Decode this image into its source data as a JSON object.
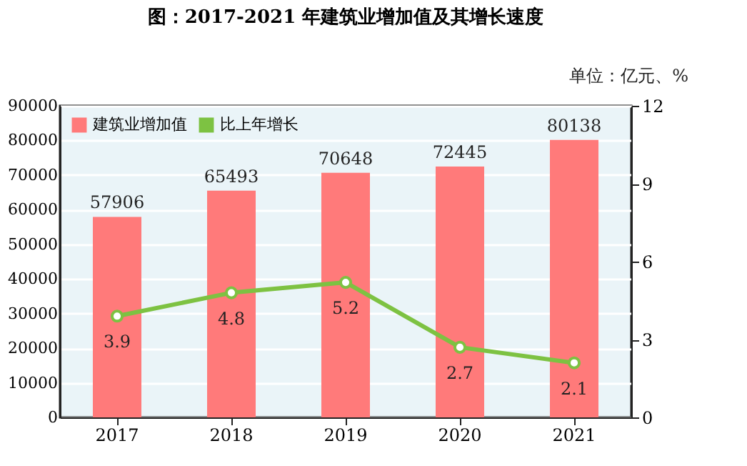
{
  "chart_data": {
    "type": "bar",
    "title": "图：2017-2021 年建筑业增加值及其增长速度",
    "annotations": [
      "单位：亿元、%"
    ],
    "categories": [
      "2017",
      "2018",
      "2019",
      "2020",
      "2021"
    ],
    "series": [
      {
        "name": "建筑业增加值",
        "color": "#ff7a7a",
        "values": [
          57906,
          65493,
          70648,
          72445,
          80138
        ]
      },
      {
        "name": "比上年增长",
        "type": "line",
        "axis": "y2",
        "color": "#7dc242",
        "marker": "circle",
        "values": [
          3.9,
          4.8,
          5.2,
          2.7,
          2.1
        ]
      }
    ],
    "ylim": [
      0,
      90000
    ],
    "yticks": [
      0,
      10000,
      20000,
      30000,
      40000,
      50000,
      60000,
      70000,
      80000,
      90000
    ],
    "y2lim": [
      0,
      12
    ],
    "y2ticks": [
      0,
      3,
      6,
      9,
      12
    ],
    "grid": "y",
    "legend": "top left",
    "data_labels": true
  }
}
